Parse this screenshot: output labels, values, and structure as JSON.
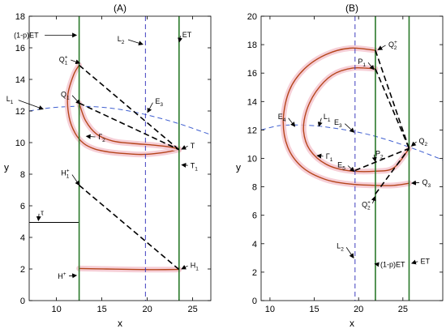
{
  "colors": {
    "trajectory": "#b5451b",
    "glow": "#f4c7d0",
    "vertical_lines": "#2a7a2a",
    "l2_line": "#3f3fbf",
    "l1_curve": "#3f5fd0",
    "dashed_jump": "#000000"
  },
  "chart_data": [
    {
      "type": "line",
      "title": "(A)",
      "xlabel": "x",
      "ylabel": "y",
      "xlim": [
        7,
        27
      ],
      "ylim": [
        0,
        18
      ],
      "xticks": [
        10,
        15,
        20,
        25
      ],
      "yticks": [
        0,
        2,
        4,
        6,
        8,
        10,
        12,
        14,
        16,
        18
      ],
      "grid": false,
      "vertical_lines": [
        {
          "name": "(1-p)ET",
          "x": 12.5,
          "style": "solid",
          "color": "green"
        },
        {
          "name": "L2",
          "x": 19.8,
          "style": "dashed",
          "color": "blue"
        },
        {
          "name": "ET",
          "x": 23.5,
          "style": "solid",
          "color": "green"
        }
      ],
      "l1_curve": {
        "name": "L1",
        "x": [
          7,
          9,
          11,
          12.5,
          14,
          16,
          18,
          20,
          22,
          24,
          26,
          27
        ],
        "y": [
          12,
          12.18,
          12.27,
          12.3,
          12.28,
          12.18,
          12.0,
          11.75,
          11.45,
          11.1,
          10.7,
          10.5
        ]
      },
      "trajectories": [
        {
          "name": "upper orbit",
          "x": [
            12.5,
            11.9,
            11.25,
            11.4,
            12.05,
            13.0,
            14.2,
            15.8,
            17.6,
            19.5,
            21.5,
            23.5
          ],
          "y": [
            14.9,
            14.3,
            13.0,
            11.6,
            10.6,
            9.95,
            9.6,
            9.4,
            9.3,
            9.25,
            9.35,
            9.55
          ]
        },
        {
          "name": "inner orbit",
          "x": [
            12.5,
            13.2,
            14.4,
            16.2,
            18.3,
            20.5,
            22.2,
            23.5
          ],
          "y": [
            12.5,
            11.4,
            10.55,
            10.1,
            9.95,
            9.85,
            9.75,
            9.6
          ]
        },
        {
          "name": "lower orbit",
          "x": [
            12.5,
            15.5,
            18.5,
            21.0,
            23.5
          ],
          "y": [
            2.03,
            2.0,
            1.97,
            1.96,
            1.97
          ]
        },
        {
          "name": "tau line",
          "x": [
            7,
            12.5
          ],
          "y": [
            4.95,
            4.95
          ],
          "color": "black"
        }
      ],
      "dashed_segments": [
        {
          "from": [
            12.5,
            14.9
          ],
          "to": [
            23.5,
            9.55
          ]
        },
        {
          "from": [
            12.5,
            12.5
          ],
          "to": [
            23.5,
            9.55
          ]
        },
        {
          "from": [
            12.5,
            7.3
          ],
          "to": [
            23.5,
            1.97
          ]
        }
      ],
      "annotations": [
        {
          "label": "(1-p)ET",
          "x": 12.5,
          "y": 16.8
        },
        {
          "label": "L",
          "sub": "2",
          "x": 19.8,
          "y": 16.3
        },
        {
          "label": "ET",
          "x": 23.5,
          "y": 16.3
        },
        {
          "label": "Q",
          "sub": "1",
          "sup": "+",
          "x": 12.5,
          "y": 14.9
        },
        {
          "label": "L",
          "sub": "1",
          "x": 9.0,
          "y": 12.2
        },
        {
          "label": "Q",
          "sub": "1",
          "x": 12.5,
          "y": 12.5
        },
        {
          "label": "E",
          "sub": "3",
          "x": 19.8,
          "y": 11.75
        },
        {
          "label": "Γ",
          "sub": "2",
          "x": 13.0,
          "y": 10.3
        },
        {
          "label": "T",
          "x": 23.5,
          "y": 9.55
        },
        {
          "label": "T",
          "sub": "1",
          "x": 23.5,
          "y": 8.6
        },
        {
          "label": "H",
          "sub": "1",
          "sup": "+",
          "x": 12.5,
          "y": 7.3
        },
        {
          "label": "τ",
          "x": 8.0,
          "y": 5.0
        },
        {
          "label": "H",
          "sub": "1",
          "x": 23.5,
          "y": 1.97
        },
        {
          "label": "H",
          "sup": "+",
          "x": 12.5,
          "y": 1.6
        }
      ]
    },
    {
      "type": "line",
      "title": "(B)",
      "xlabel": "x",
      "ylabel": "y",
      "xlim": [
        9,
        29.5
      ],
      "ylim": [
        0,
        20
      ],
      "xticks": [
        10,
        15,
        20,
        25
      ],
      "yticks": [
        0,
        2,
        4,
        6,
        8,
        10,
        12,
        14,
        16,
        18,
        20
      ],
      "grid": false,
      "vertical_lines": [
        {
          "name": "L2",
          "x": 19.6,
          "style": "dashed",
          "color": "blue"
        },
        {
          "name": "(1-p)ET",
          "x": 21.9,
          "style": "solid",
          "color": "green"
        },
        {
          "name": "ET",
          "x": 25.7,
          "style": "solid",
          "color": "green"
        }
      ],
      "l1_curve": {
        "name": "L1",
        "x": [
          9,
          11,
          13,
          15,
          17,
          19,
          21,
          23,
          25,
          27,
          29.5
        ],
        "y": [
          12.0,
          12.3,
          12.35,
          12.3,
          12.15,
          11.95,
          11.7,
          11.35,
          10.95,
          10.5,
          9.9
        ]
      },
      "trajectories": [
        {
          "name": "outer orbit",
          "x": [
            21.9,
            19.0,
            16.3,
            13.9,
            12.2,
            11.5,
            12.0,
            13.6,
            16.1,
            19.0,
            21.9,
            24.0,
            25.7
          ],
          "y": [
            17.6,
            17.75,
            17.3,
            16.3,
            14.8,
            12.7,
            10.8,
            9.4,
            8.55,
            8.2,
            8.1,
            8.1,
            8.25
          ]
        },
        {
          "name": "inner orbit",
          "x": [
            21.9,
            19.3,
            17.0,
            15.2,
            14.1,
            13.8,
            14.5,
            16.3,
            18.7,
            21.9,
            24.0,
            25.7
          ],
          "y": [
            16.3,
            16.35,
            15.85,
            14.7,
            13.3,
            11.9,
            10.6,
            9.6,
            9.15,
            9.1,
            9.35,
            10.7
          ]
        }
      ],
      "dashed_segments": [
        {
          "from": [
            21.9,
            17.6
          ],
          "to": [
            25.7,
            10.7
          ]
        },
        {
          "from": [
            21.9,
            16.3
          ],
          "to": [
            25.7,
            10.7
          ]
        },
        {
          "from": [
            19.6,
            9.15
          ],
          "to": [
            25.7,
            10.7
          ]
        },
        {
          "from": [
            21.9,
            7.5
          ],
          "to": [
            25.7,
            10.7
          ]
        }
      ],
      "annotations": [
        {
          "label": "Q",
          "sub": "2",
          "sup": "+",
          "x": 21.9,
          "y": 17.6
        },
        {
          "label": "P",
          "sub": "1",
          "x": 21.9,
          "y": 16.3
        },
        {
          "label": "E",
          "sub": "4",
          "x": 12.7,
          "y": 12.3
        },
        {
          "label": "L",
          "sub": "1",
          "x": 15.3,
          "y": 12.3
        },
        {
          "label": "E",
          "sub": "3",
          "x": 19.4,
          "y": 11.9
        },
        {
          "label": "Γ",
          "sub": "1",
          "x": 15.2,
          "y": 10.2
        },
        {
          "label": "Q",
          "sub": "2",
          "x": 25.7,
          "y": 10.7
        },
        {
          "label": "E",
          "sub": "5",
          "x": 19.6,
          "y": 9.15
        },
        {
          "label": "P",
          "sub": "2",
          "x": 21.9,
          "y": 9.6
        },
        {
          "label": "Q",
          "sub": "3",
          "x": 25.7,
          "y": 8.25
        },
        {
          "label": "Q",
          "sub": "2",
          "sup": "+",
          "x": 21.9,
          "y": 7.5
        },
        {
          "label": "L",
          "sub": "2",
          "x": 19.6,
          "y": 3.0
        },
        {
          "label": "(1-p)ET",
          "x": 21.9,
          "y": 2.6
        },
        {
          "label": "ET",
          "x": 25.7,
          "y": 2.6
        }
      ]
    }
  ]
}
